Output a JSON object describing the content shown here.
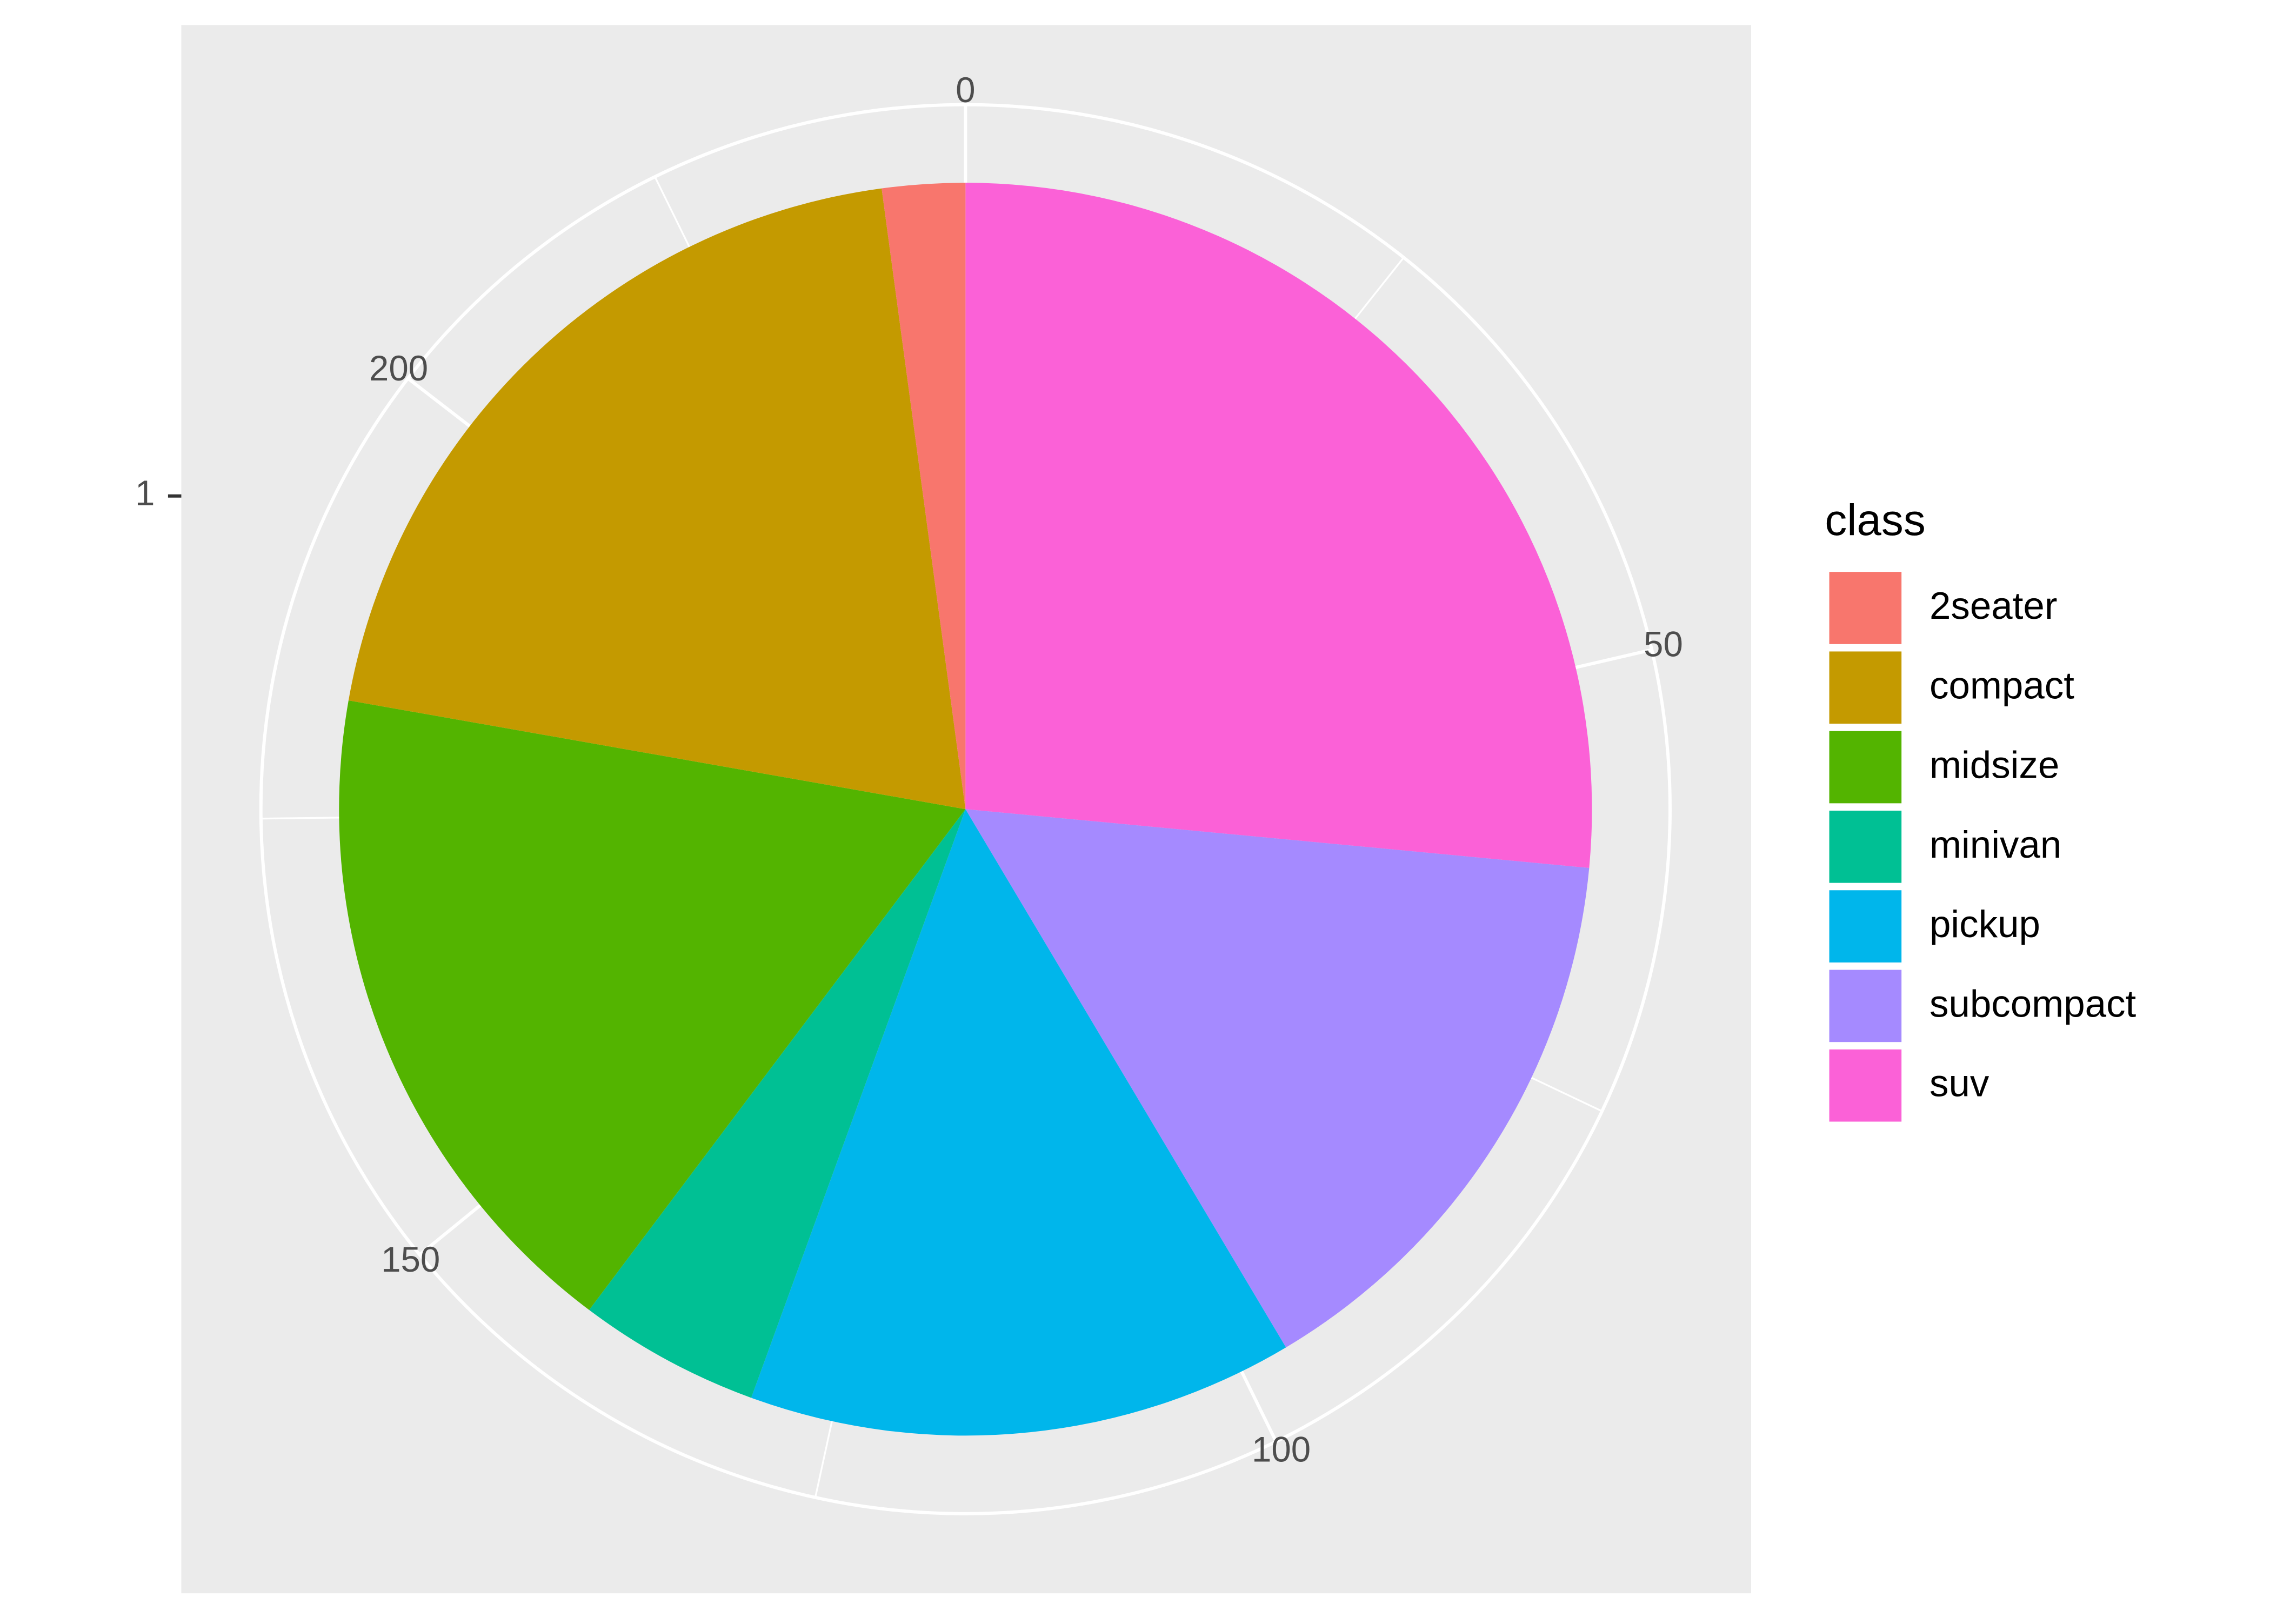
{
  "chart_data": {
    "type": "pie",
    "legend_title": "class",
    "categories": [
      "2seater",
      "compact",
      "midsize",
      "minivan",
      "pickup",
      "subcompact",
      "suv"
    ],
    "values": [
      5,
      47,
      41,
      11,
      33,
      35,
      62
    ],
    "colors": [
      "#F8766D",
      "#C49A00",
      "#53B400",
      "#00C094",
      "#00B6EB",
      "#A58AFF",
      "#FB61D7"
    ],
    "xlim": [
      0,
      234
    ],
    "xticks": [
      0,
      50,
      100,
      150,
      200
    ],
    "y_categories": [
      "1"
    ],
    "grid": true,
    "legend": "right"
  }
}
